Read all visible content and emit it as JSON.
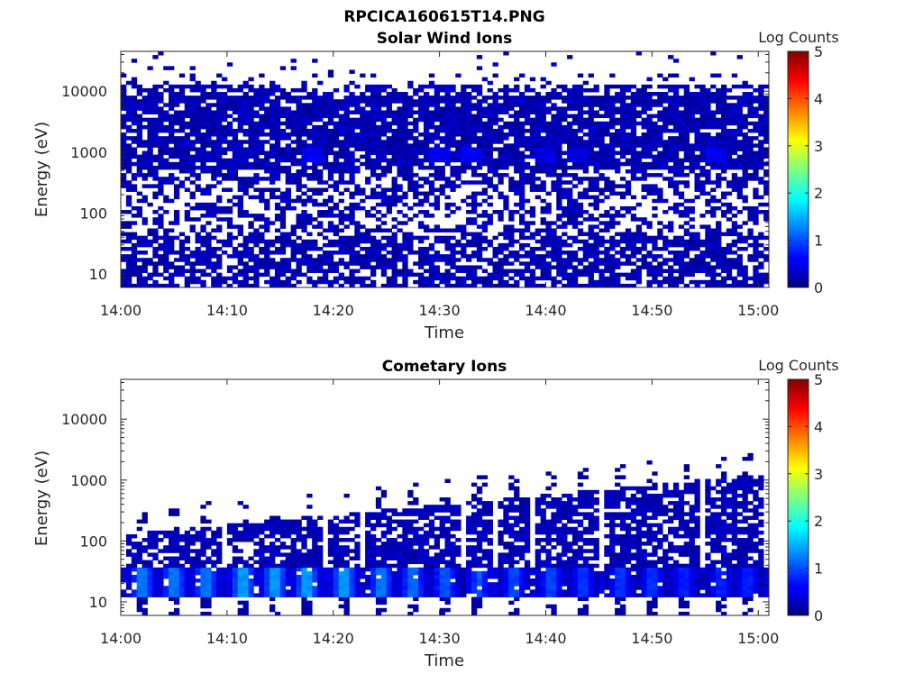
{
  "figure": {
    "title": "RPCICA160615T14.PNG"
  },
  "chart_data": [
    {
      "type": "heatmap",
      "title": "Solar Wind Ions",
      "xlabel": "Time",
      "ylabel": "Energy (eV)",
      "x_ticks": [
        "14:00",
        "14:10",
        "14:20",
        "14:30",
        "14:40",
        "14:50",
        "15:00"
      ],
      "y_ticks": [
        "10",
        "100",
        "1000",
        "10000"
      ],
      "y_scale": "log",
      "ylim": [
        6,
        45000
      ],
      "xlim_minutes": [
        0,
        61
      ],
      "colorbar": {
        "label": "Log Counts",
        "ticks": [
          "0",
          "1",
          "2",
          "3",
          "4",
          "5"
        ],
        "range": [
          0,
          5
        ],
        "colormap": "jet"
      },
      "description_of_values": "Mostly low counts (0-0.6 log) widely distributed over 8 eV to 30 keV with slight enhancements near 1000 eV",
      "hotspots": [
        {
          "minute": 18,
          "energy": 900,
          "value": 0.6
        },
        {
          "minute": 30,
          "energy": 900,
          "value": 0.6
        },
        {
          "minute": 33,
          "energy": 900,
          "value": 0.6
        },
        {
          "minute": 40,
          "energy": 900,
          "value": 0.5
        },
        {
          "minute": 43,
          "energy": 900,
          "value": 0.5
        },
        {
          "minute": 56,
          "energy": 950,
          "value": 0.6
        }
      ]
    },
    {
      "type": "heatmap",
      "title": "Cometary Ions",
      "xlabel": "Time",
      "ylabel": "Energy (eV)",
      "x_ticks": [
        "14:00",
        "14:10",
        "14:20",
        "14:30",
        "14:40",
        "14:50",
        "15:00"
      ],
      "y_ticks": [
        "10",
        "100",
        "1000",
        "10000"
      ],
      "y_scale": "log",
      "ylim": [
        6,
        45000
      ],
      "xlim_minutes": [
        0,
        61
      ],
      "colorbar": {
        "label": "Log Counts",
        "ticks": [
          "0",
          "1",
          "2",
          "3",
          "4",
          "5"
        ],
        "range": [
          0,
          5
        ],
        "colormap": "jet"
      },
      "description_of_values": "Periodic bursts roughly every 3 minutes with strongest counts (up to ~1.5 log) between 13 and 35 eV, weaker tails extending up to ~1500 eV",
      "burst_minutes": [
        2,
        5,
        8,
        11.5,
        14.5,
        17.5,
        21,
        24.5,
        27.5,
        30.5,
        33.7,
        37,
        40.5,
        43.5,
        47,
        50,
        53,
        56.5,
        59
      ],
      "burst_peak_log_counts": [
        1.3,
        1.3,
        1.3,
        1.5,
        1.5,
        1.5,
        1.5,
        1.3,
        1.2,
        1.1,
        1.0,
        1.0,
        1.0,
        0.9,
        0.9,
        0.9,
        0.8,
        0.8,
        0.8
      ],
      "burst_peak_energy_range_eV": [
        13,
        35
      ]
    }
  ]
}
